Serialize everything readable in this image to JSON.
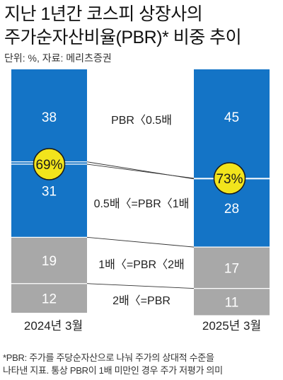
{
  "header": {
    "title_lines": [
      "지난 1년간 코스피 상장사의",
      "주가순자산비율(PBR)* 비중 추이"
    ],
    "source": "단위: %, 자료: 메리츠증권"
  },
  "footnote": {
    "lines": [
      "*PBR: 주가를 주당순자산으로 나눠 주가의 상대적 수준을",
      "나타낸 지표. 통상 PBR이 1배 미만인 경우 주가 저평가 의미"
    ]
  },
  "colors": {
    "blue": "#1474c6",
    "gray": "#a8a8a8",
    "badge": "#f2e41c",
    "connector": "#333333"
  },
  "chart_data": {
    "type": "bar",
    "stacked": true,
    "categories": [
      "2024년 3월",
      "2025년 3월"
    ],
    "series": [
      {
        "name": "PBR〈0.5배",
        "values": [
          38,
          45
        ],
        "color": "#1474c6"
      },
      {
        "name": "0.5배〈=PBR〈1배",
        "values": [
          31,
          28
        ],
        "color": "#1474c6"
      },
      {
        "name": "1배〈=PBR〈2배",
        "values": [
          19,
          17
        ],
        "color": "#a8a8a8"
      },
      {
        "name": "2배〈=PBR",
        "values": [
          12,
          11
        ],
        "color": "#a8a8a8"
      }
    ],
    "annotations": [
      {
        "category": "2024년 3월",
        "label": "69%",
        "value": 69,
        "note": "sum of PBR under 1x"
      },
      {
        "category": "2025년 3월",
        "label": "73%",
        "value": 73,
        "note": "sum of PBR under 1x"
      }
    ],
    "ylim": [
      0,
      100
    ],
    "grid": false,
    "legend": "between bars"
  }
}
